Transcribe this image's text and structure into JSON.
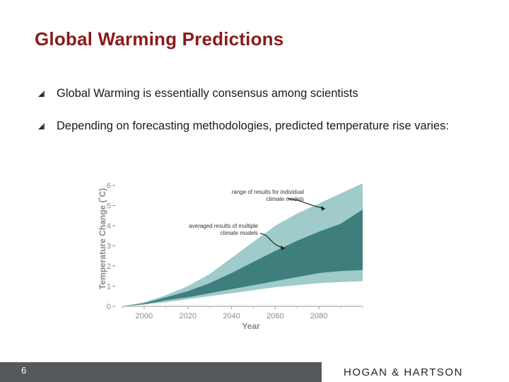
{
  "slide": {
    "title": "Global Warming Predictions",
    "bullets": [
      "Global Warming is essentially consensus among scientists",
      "Depending on forecasting methodologies, predicted temperature rise varies:"
    ],
    "bullet_icon": "triangle-bullet-icon",
    "page_number": "6",
    "brand": "HOGAN & HARTSON",
    "colors": {
      "title": "#8b1a1a",
      "outer_band": "#9fcbca",
      "inner_band": "#3e7f7d",
      "footer": "#56595b"
    }
  },
  "chart_data": {
    "type": "area",
    "title": "",
    "xlabel": "Year",
    "ylabel": "Temperature Change (˚C)",
    "x_ticks": [
      "2000",
      "2020",
      "2040",
      "2060",
      "2080"
    ],
    "y_ticks": [
      "0",
      "1",
      "2",
      "3",
      "4",
      "5",
      "6"
    ],
    "xlim": [
      1990,
      2100
    ],
    "ylim": [
      0,
      6
    ],
    "grid": false,
    "series": [
      {
        "name": "range of results for individual climate models",
        "x": [
          1990,
          2000,
          2010,
          2020,
          2030,
          2040,
          2050,
          2060,
          2070,
          2080,
          2090,
          2100
        ],
        "low": [
          0.0,
          0.1,
          0.2,
          0.35,
          0.5,
          0.65,
          0.8,
          0.95,
          1.05,
          1.15,
          1.2,
          1.25
        ],
        "high": [
          0.0,
          0.2,
          0.55,
          1.0,
          1.6,
          2.4,
          3.2,
          4.0,
          4.6,
          5.1,
          5.6,
          6.1
        ]
      },
      {
        "name": "averaged results of multiple climate models",
        "x": [
          1990,
          2000,
          2010,
          2020,
          2030,
          2040,
          2050,
          2060,
          2070,
          2080,
          2090,
          2100
        ],
        "low": [
          0.0,
          0.1,
          0.3,
          0.45,
          0.65,
          0.85,
          1.05,
          1.25,
          1.45,
          1.65,
          1.75,
          1.8
        ],
        "high": [
          0.0,
          0.15,
          0.45,
          0.75,
          1.15,
          1.65,
          2.2,
          2.75,
          3.25,
          3.7,
          4.1,
          4.8
        ]
      }
    ],
    "annotations": [
      {
        "lines": [
          "range of results for individual",
          "climate models"
        ]
      },
      {
        "lines": [
          "averaged results of multiple",
          "climate models"
        ]
      }
    ]
  }
}
